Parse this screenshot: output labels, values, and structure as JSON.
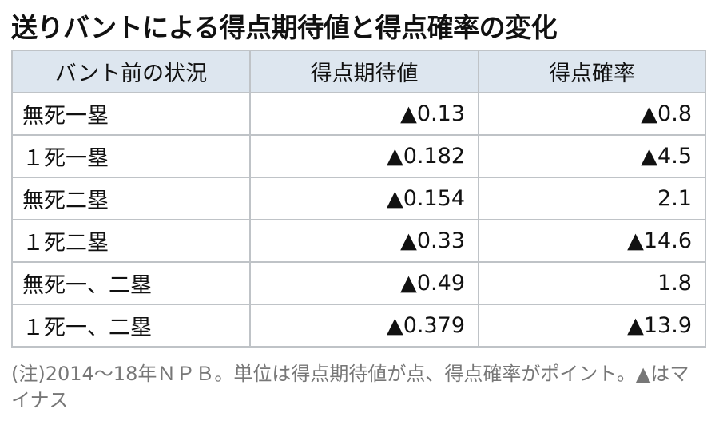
{
  "title": "送りバントによる得点期待値と得点確率の変化",
  "table": {
    "header": [
      "バント前の状況",
      "得点期待値",
      "得点確率"
    ],
    "rows": [
      [
        "無死一塁",
        "▲0.13",
        "▲0.8"
      ],
      [
        "１死一塁",
        "▲0.182",
        "▲4.5"
      ],
      [
        "無死二塁",
        "▲0.154",
        "2.1"
      ],
      [
        "１死二塁",
        "▲0.33",
        "▲14.6"
      ],
      [
        "無死一、二塁",
        "▲0.49",
        "1.8"
      ],
      [
        "１死一、二塁",
        "▲0.379",
        "▲13.9"
      ]
    ]
  },
  "note": "(注)2014～18年ＮＰＢ。単位は得点期待値が点、得点確率がポイント。▲はマイナス"
}
